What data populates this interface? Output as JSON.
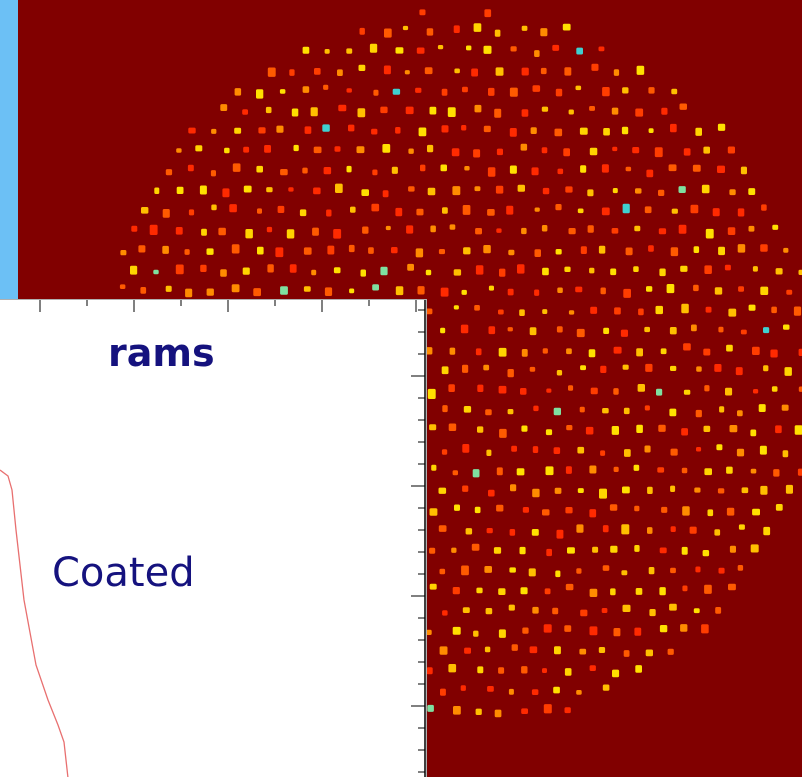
{
  "plot": {
    "heading": "rams",
    "series_label": "Coated"
  },
  "colors": {
    "background": "#6cc0f5",
    "fiber_background": "#810000",
    "plot_text": "#15127e",
    "curve": "#e87070"
  }
}
